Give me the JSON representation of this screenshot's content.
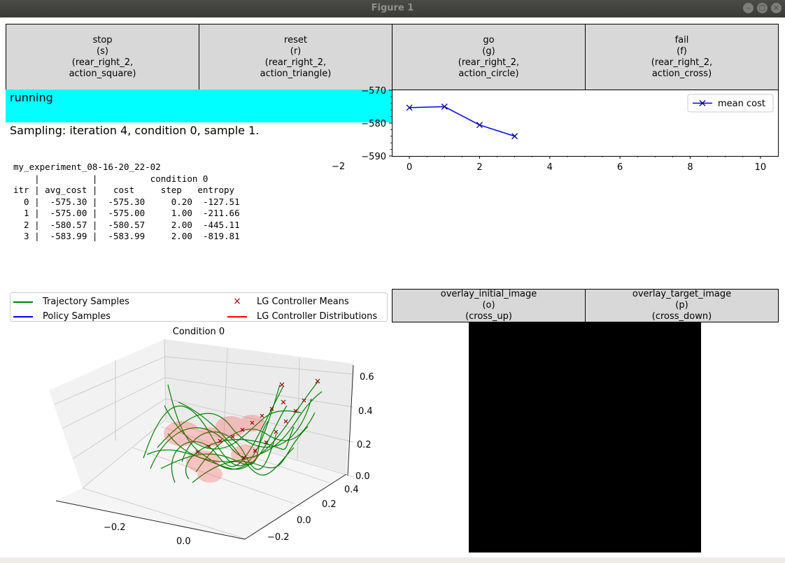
{
  "window": {
    "title": "Figure 1"
  },
  "action_buttons": [
    {
      "label": "stop\n(s)\n(rear_right_2,\naction_square)"
    },
    {
      "label": "reset\n(r)\n(rear_right_2,\naction_triangle)"
    },
    {
      "label": "go\n(g)\n(rear_right_2,\naction_circle)"
    },
    {
      "label": "fail\n(f)\n(rear_right_2,\naction_cross)"
    }
  ],
  "overlay_buttons": [
    {
      "label": "overlay_initial_image\n(o)\n(cross_up)"
    },
    {
      "label": "overlay_target_image\n(p)\n(cross_down)"
    }
  ],
  "status": {
    "text": "running",
    "color": "#00ffff"
  },
  "sampling": {
    "text": "Sampling: iteration 4, condition 0, sample 1."
  },
  "experiment": {
    "table_text": "my_experiment_08-16-20_22-02\n    |          |          condition 0\nitr | avg_cost |   cost     step   entropy\n  0 |  -575.30 |  -575.30     0.20  -127.51\n  1 |  -575.00 |  -575.00     1.00  -211.66\n  2 |  -580.57 |  -580.57     2.00  -445.11\n  3 |  -583.99 |  -583.99     2.00  -819.81",
    "stray_tick": "−2"
  },
  "chart_data": [
    {
      "type": "line",
      "series": [
        {
          "name": "mean cost",
          "x": [
            0,
            1,
            2,
            3
          ],
          "y": [
            -575.3,
            -575.0,
            -580.57,
            -583.99
          ],
          "color": "#0000ff",
          "marker": "x"
        }
      ],
      "xlim": [
        -0.5,
        10.5
      ],
      "ylim": [
        -590,
        -570
      ],
      "x_ticks": [
        0,
        2,
        4,
        6,
        8,
        10
      ],
      "y_ticks": [
        -570,
        -580,
        -590
      ],
      "x_tick_labels": [
        "0",
        "2",
        "4",
        "6",
        "8",
        "10"
      ],
      "y_tick_labels": [
        "−570",
        "−580",
        "−590"
      ],
      "legend_placement": "top-right",
      "grid": false
    },
    {
      "type": "scatter",
      "title": "Condition 0",
      "legend": [
        {
          "name": "Trajectory Samples",
          "color": "#008000",
          "kind": "line"
        },
        {
          "name": "Policy Samples",
          "color": "#0000ff",
          "kind": "line"
        },
        {
          "name": "LG Controller Means",
          "color": "#8b0000",
          "kind": "marker"
        },
        {
          "name": "LG Controller Distributions",
          "color": "#ff0000",
          "kind": "line"
        }
      ],
      "x_tick_labels": [
        "−0.2",
        "0.0"
      ],
      "y_tick_labels": [
        "−0.2",
        "0.0",
        "0.2",
        "0.4"
      ],
      "z_tick_labels": [
        "0.0",
        "0.2",
        "0.4",
        "0.6"
      ]
    }
  ]
}
